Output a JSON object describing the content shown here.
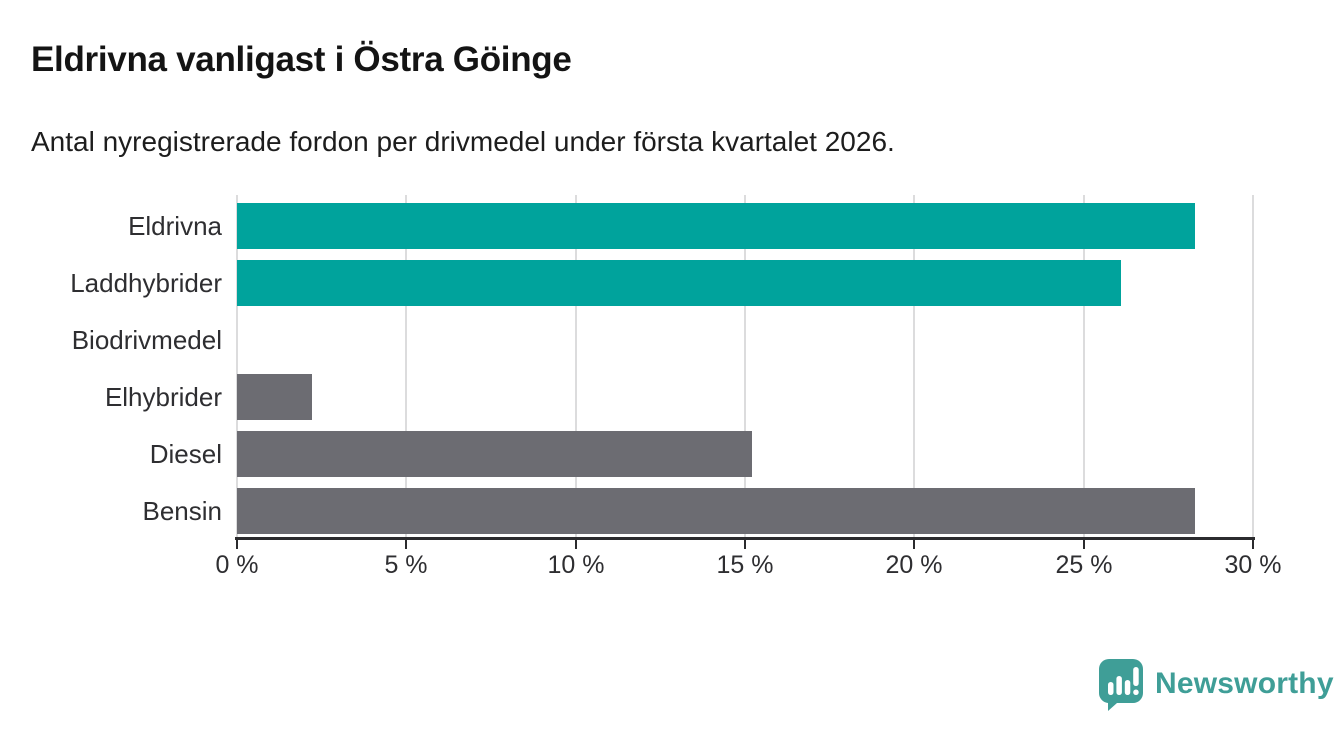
{
  "header": {
    "title": "Eldrivna vanligast i Östra Göinge",
    "subtitle": "Antal nyregistrerade fordon per drivmedel under första kvartalet 2026."
  },
  "chart_data": {
    "type": "bar",
    "orientation": "horizontal",
    "title": "Eldrivna vanligast i Östra Göinge",
    "subtitle": "Antal nyregistrerade fordon per drivmedel under första kvartalet 2026.",
    "categories": [
      "Eldrivna",
      "Laddhybrider",
      "Biodrivmedel",
      "Elhybrider",
      "Diesel",
      "Bensin"
    ],
    "values": [
      28.3,
      26.1,
      0,
      2.2,
      15.2,
      28.3
    ],
    "unit": "%",
    "bar_colors": [
      "#00a39c",
      "#00a39c",
      "#6c6c72",
      "#6c6c72",
      "#6c6c72",
      "#6c6c72"
    ],
    "xlabel": "",
    "ylabel": "",
    "xlim": [
      0,
      30
    ],
    "x_tick_labels": [
      "0 %",
      "5 %",
      "10 %",
      "15 %",
      "20 %",
      "25 %",
      "30 %"
    ],
    "grid": true,
    "legend": "none"
  },
  "colors": {
    "accent_teal": "#00a39c",
    "neutral_gray": "#6c6c72",
    "gridline": "#dcdcdd",
    "axis": "#2b2b2e",
    "text": "#2e2e31",
    "brand_teal": "#3f9e97"
  },
  "footer": {
    "brand": "Newsworthy",
    "logo_icon": "newsworthy-speech-bubble-bar-chart-icon"
  }
}
